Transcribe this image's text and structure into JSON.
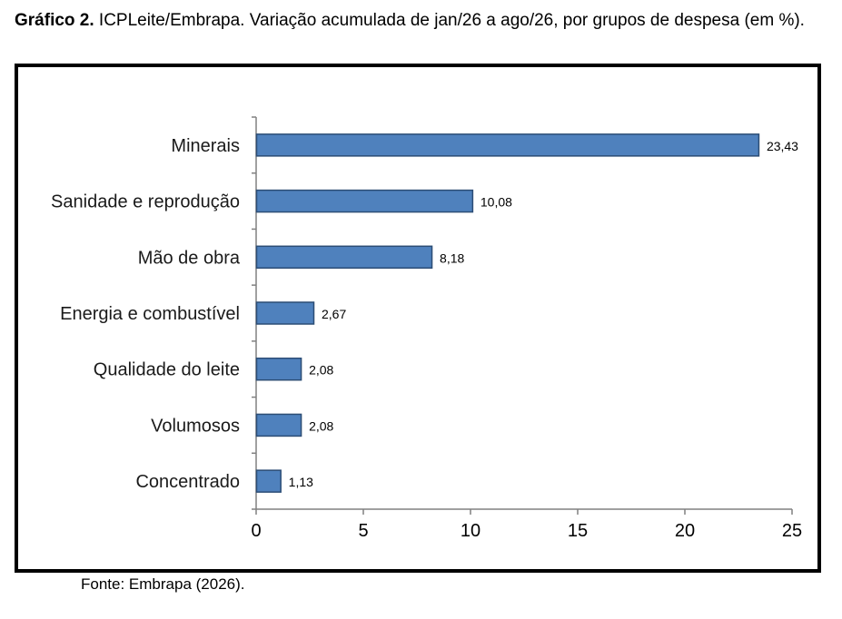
{
  "caption": {
    "label": "Gráfico 2.",
    "text": " ICPLeite/Embrapa. Variação acumulada de jan/26 a ago/26, por grupos de despesa (em %)."
  },
  "source": "Fonte: Embrapa (2026).",
  "colors": {
    "bar_fill": "#4f81bd",
    "bar_stroke": "#2c4d75",
    "axis": "#808080"
  },
  "chart_data": {
    "type": "bar",
    "orientation": "horizontal",
    "categories": [
      "Minerais",
      "Sanidade e reprodução",
      "Mão de obra",
      "Energia e combustível",
      "Qualidade do leite",
      "Volumosos",
      "Concentrado"
    ],
    "values": [
      23.43,
      10.08,
      8.18,
      2.67,
      2.08,
      2.08,
      1.13
    ],
    "value_labels": [
      "23,43",
      "10,08",
      "8,18",
      "2,67",
      "2,08",
      "2,08",
      "1,13"
    ],
    "xlim": [
      0,
      25
    ],
    "xticks": [
      "0",
      "5",
      "10",
      "15",
      "20",
      "25"
    ],
    "grid": false,
    "legend": "none"
  }
}
